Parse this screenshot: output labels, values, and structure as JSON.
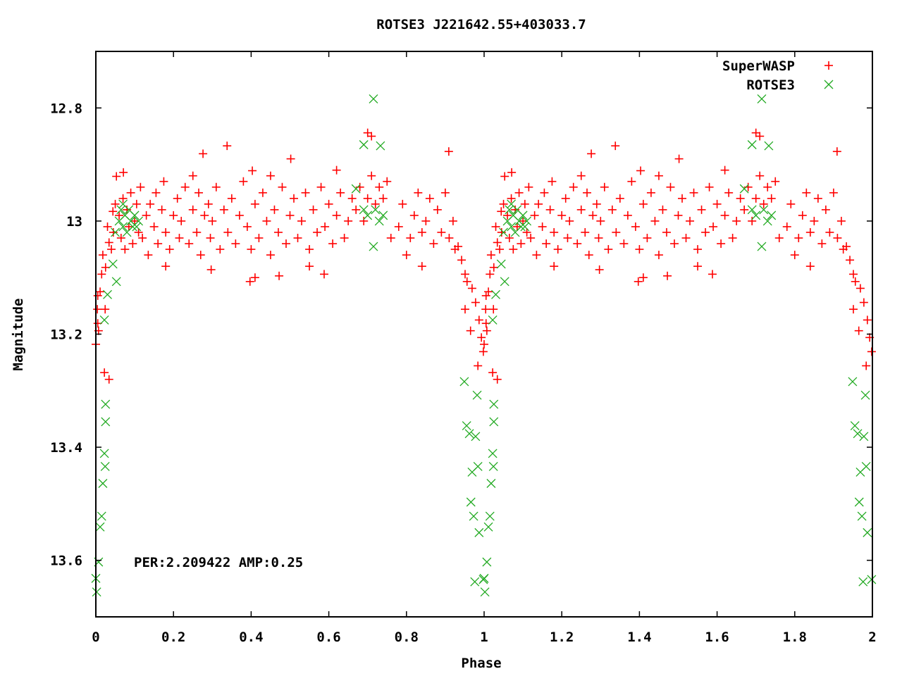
{
  "chart_data": {
    "type": "scatter",
    "title": "ROTSE3 J221642.55+403033.7",
    "xlabel": "Phase",
    "ylabel": "Magnitude",
    "xlim": [
      0,
      2
    ],
    "ylim": [
      13.7,
      12.7
    ],
    "y_inverted": true,
    "x_ticks": [
      "0",
      "0.2",
      "0.4",
      "0.6",
      "0.8",
      "1",
      "1.2",
      "1.4",
      "1.6",
      "1.8",
      "2"
    ],
    "y_ticks": [
      "12.8",
      "13",
      "13.2",
      "13.4",
      "13.6"
    ],
    "grid": false,
    "legend_position": "top-right",
    "annotation": "PER:2.209422 AMP:0.25",
    "phase_folded_repeat": "points shown at phase and phase+1",
    "series": [
      {
        "name": "SuperWASP",
        "marker": "plus",
        "color": "#ff0000",
        "points": [
          [
            0.06,
            12.99
          ],
          [
            0.065,
            13.03
          ],
          [
            0.07,
            12.96
          ],
          [
            0.075,
            13.05
          ],
          [
            0.08,
            12.98
          ],
          [
            0.085,
            13.01
          ],
          [
            0.09,
            12.95
          ],
          [
            0.095,
            13.04
          ],
          [
            0.1,
            13.0
          ],
          [
            0.105,
            12.97
          ],
          [
            0.11,
            13.02
          ],
          [
            0.115,
            12.94
          ],
          [
            0.12,
            13.03
          ],
          [
            0.13,
            12.99
          ],
          [
            0.135,
            13.06
          ],
          [
            0.14,
            12.97
          ],
          [
            0.15,
            13.01
          ],
          [
            0.155,
            12.95
          ],
          [
            0.16,
            13.04
          ],
          [
            0.17,
            12.98
          ],
          [
            0.175,
            12.93
          ],
          [
            0.18,
            13.02
          ],
          [
            0.19,
            13.05
          ],
          [
            0.2,
            12.99
          ],
          [
            0.21,
            12.96
          ],
          [
            0.215,
            13.03
          ],
          [
            0.22,
            13.0
          ],
          [
            0.23,
            12.94
          ],
          [
            0.24,
            13.04
          ],
          [
            0.25,
            12.98
          ],
          [
            0.26,
            13.02
          ],
          [
            0.265,
            12.95
          ],
          [
            0.27,
            13.06
          ],
          [
            0.28,
            12.99
          ],
          [
            0.29,
            12.97
          ],
          [
            0.295,
            13.03
          ],
          [
            0.3,
            13.0
          ],
          [
            0.31,
            12.94
          ],
          [
            0.32,
            13.05
          ],
          [
            0.33,
            12.98
          ],
          [
            0.34,
            13.02
          ],
          [
            0.35,
            12.96
          ],
          [
            0.36,
            13.04
          ],
          [
            0.37,
            12.99
          ],
          [
            0.38,
            12.93
          ],
          [
            0.39,
            13.01
          ],
          [
            0.4,
            13.05
          ],
          [
            0.41,
            12.97
          ],
          [
            0.42,
            13.03
          ],
          [
            0.43,
            12.95
          ],
          [
            0.44,
            13.0
          ],
          [
            0.45,
            13.06
          ],
          [
            0.46,
            12.98
          ],
          [
            0.47,
            13.02
          ],
          [
            0.48,
            12.94
          ],
          [
            0.49,
            13.04
          ],
          [
            0.5,
            12.99
          ],
          [
            0.51,
            12.96
          ],
          [
            0.52,
            13.03
          ],
          [
            0.53,
            13.0
          ],
          [
            0.54,
            12.95
          ],
          [
            0.55,
            13.05
          ],
          [
            0.56,
            12.98
          ],
          [
            0.57,
            13.02
          ],
          [
            0.58,
            12.94
          ],
          [
            0.59,
            13.01
          ],
          [
            0.6,
            12.97
          ],
          [
            0.61,
            13.04
          ],
          [
            0.62,
            12.99
          ],
          [
            0.63,
            12.95
          ],
          [
            0.64,
            13.03
          ],
          [
            0.65,
            13.0
          ],
          [
            0.66,
            12.96
          ],
          [
            0.67,
            12.98
          ],
          [
            0.68,
            12.94
          ],
          [
            0.69,
            13.0
          ],
          [
            0.7,
            12.96
          ],
          [
            0.71,
            12.92
          ],
          [
            0.72,
            12.97
          ],
          [
            0.73,
            12.94
          ],
          [
            0.74,
            12.96
          ],
          [
            0.75,
            12.93
          ],
          [
            0.76,
            13.03
          ],
          [
            0.78,
            13.01
          ],
          [
            0.79,
            12.97
          ],
          [
            0.8,
            13.06
          ],
          [
            0.81,
            13.03
          ],
          [
            0.82,
            12.99
          ],
          [
            0.83,
            12.95
          ],
          [
            0.84,
            13.02
          ],
          [
            0.85,
            13.0
          ],
          [
            0.86,
            12.96
          ],
          [
            0.87,
            13.04
          ],
          [
            0.88,
            12.98
          ],
          [
            0.89,
            13.02
          ],
          [
            0.9,
            12.95
          ],
          [
            0.91,
            13.03
          ],
          [
            0.92,
            13.0
          ],
          [
            0.925,
            13.05
          ],
          [
            0.338,
            12.867
          ],
          [
            0.276,
            12.881
          ],
          [
            0.909,
            12.877
          ],
          [
            0.502,
            12.89
          ],
          [
            0.403,
            12.911
          ],
          [
            0.7,
            12.844
          ],
          [
            0.71,
            12.85
          ],
          [
            0.397,
            13.107
          ],
          [
            0.41,
            13.1
          ],
          [
            0.297,
            13.086
          ],
          [
            0.588,
            13.094
          ],
          [
            0.472,
            13.097
          ],
          [
            0.25,
            12.92
          ],
          [
            0.45,
            12.92
          ],
          [
            0.62,
            12.91
          ],
          [
            0.18,
            13.08
          ],
          [
            0.55,
            13.08
          ],
          [
            0.84,
            13.08
          ],
          [
            0.933,
            13.045
          ],
          [
            0.942,
            13.069
          ],
          [
            0.951,
            13.094
          ],
          [
            0.956,
            13.107
          ],
          [
            0.951,
            13.156
          ],
          [
            0.965,
            13.194
          ],
          [
            0.969,
            13.119
          ],
          [
            0.978,
            13.144
          ],
          [
            0.987,
            13.175
          ],
          [
            0.993,
            13.206
          ],
          [
            0.998,
            13.231
          ],
          [
            0.984,
            13.256
          ],
          [
            0.0,
            13.218
          ],
          [
            0.007,
            13.194
          ],
          [
            0.004,
            13.156
          ],
          [
            0.011,
            13.125
          ],
          [
            0.025,
            13.082
          ],
          [
            0.018,
            13.06
          ],
          [
            0.034,
            13.038
          ],
          [
            0.044,
            12.983
          ],
          [
            0.053,
            12.921
          ],
          [
            0.071,
            12.914
          ],
          [
            0.034,
            13.28
          ],
          [
            0.022,
            13.268
          ],
          [
            0.005,
            13.132
          ],
          [
            0.015,
            13.094
          ],
          [
            0.024,
            13.156
          ],
          [
            0.005,
            13.181
          ],
          [
            0.03,
            13.01
          ],
          [
            0.04,
            13.05
          ],
          [
            0.05,
            12.97
          ],
          [
            0.045,
            13.02
          ]
        ]
      },
      {
        "name": "ROTSE3",
        "marker": "cross",
        "color": "#22aa22",
        "points": [
          [
            0.949,
            13.284
          ],
          [
            0.955,
            13.362
          ],
          [
            0.962,
            13.376
          ],
          [
            0.978,
            13.381
          ],
          [
            0.969,
            13.444
          ],
          [
            0.984,
            13.434
          ],
          [
            0.982,
            13.308
          ],
          [
            0.966,
            13.497
          ],
          [
            0.973,
            13.522
          ],
          [
            0.987,
            13.551
          ],
          [
            0.976,
            13.638
          ],
          [
            0.998,
            13.634
          ],
          [
            0.025,
            13.324
          ],
          [
            0.025,
            13.355
          ],
          [
            0.022,
            13.411
          ],
          [
            0.024,
            13.434
          ],
          [
            0.018,
            13.464
          ],
          [
            0.015,
            13.522
          ],
          [
            0.011,
            13.541
          ],
          [
            0.007,
            13.603
          ],
          [
            0.0,
            13.632
          ],
          [
            0.002,
            13.656
          ],
          [
            0.022,
            13.175
          ],
          [
            0.044,
            13.076
          ],
          [
            0.053,
            13.107
          ],
          [
            0.03,
            13.13
          ],
          [
            0.06,
            13.0
          ],
          [
            0.065,
            12.98
          ],
          [
            0.07,
            13.01
          ],
          [
            0.075,
            12.99
          ],
          [
            0.08,
            13.02
          ],
          [
            0.085,
            12.98
          ],
          [
            0.09,
            13.0
          ],
          [
            0.095,
            13.01
          ],
          [
            0.1,
            12.99
          ],
          [
            0.105,
            13.01
          ],
          [
            0.11,
            13.0
          ],
          [
            0.07,
            12.97
          ],
          [
            0.05,
            13.02
          ],
          [
            0.715,
            12.784
          ],
          [
            0.69,
            12.865
          ],
          [
            0.733,
            12.867
          ],
          [
            0.67,
            12.943
          ],
          [
            0.715,
            13.045
          ],
          [
            0.69,
            12.98
          ],
          [
            0.7,
            12.99
          ],
          [
            0.72,
            12.98
          ],
          [
            0.73,
            13.0
          ],
          [
            0.74,
            12.99
          ]
        ]
      }
    ]
  }
}
